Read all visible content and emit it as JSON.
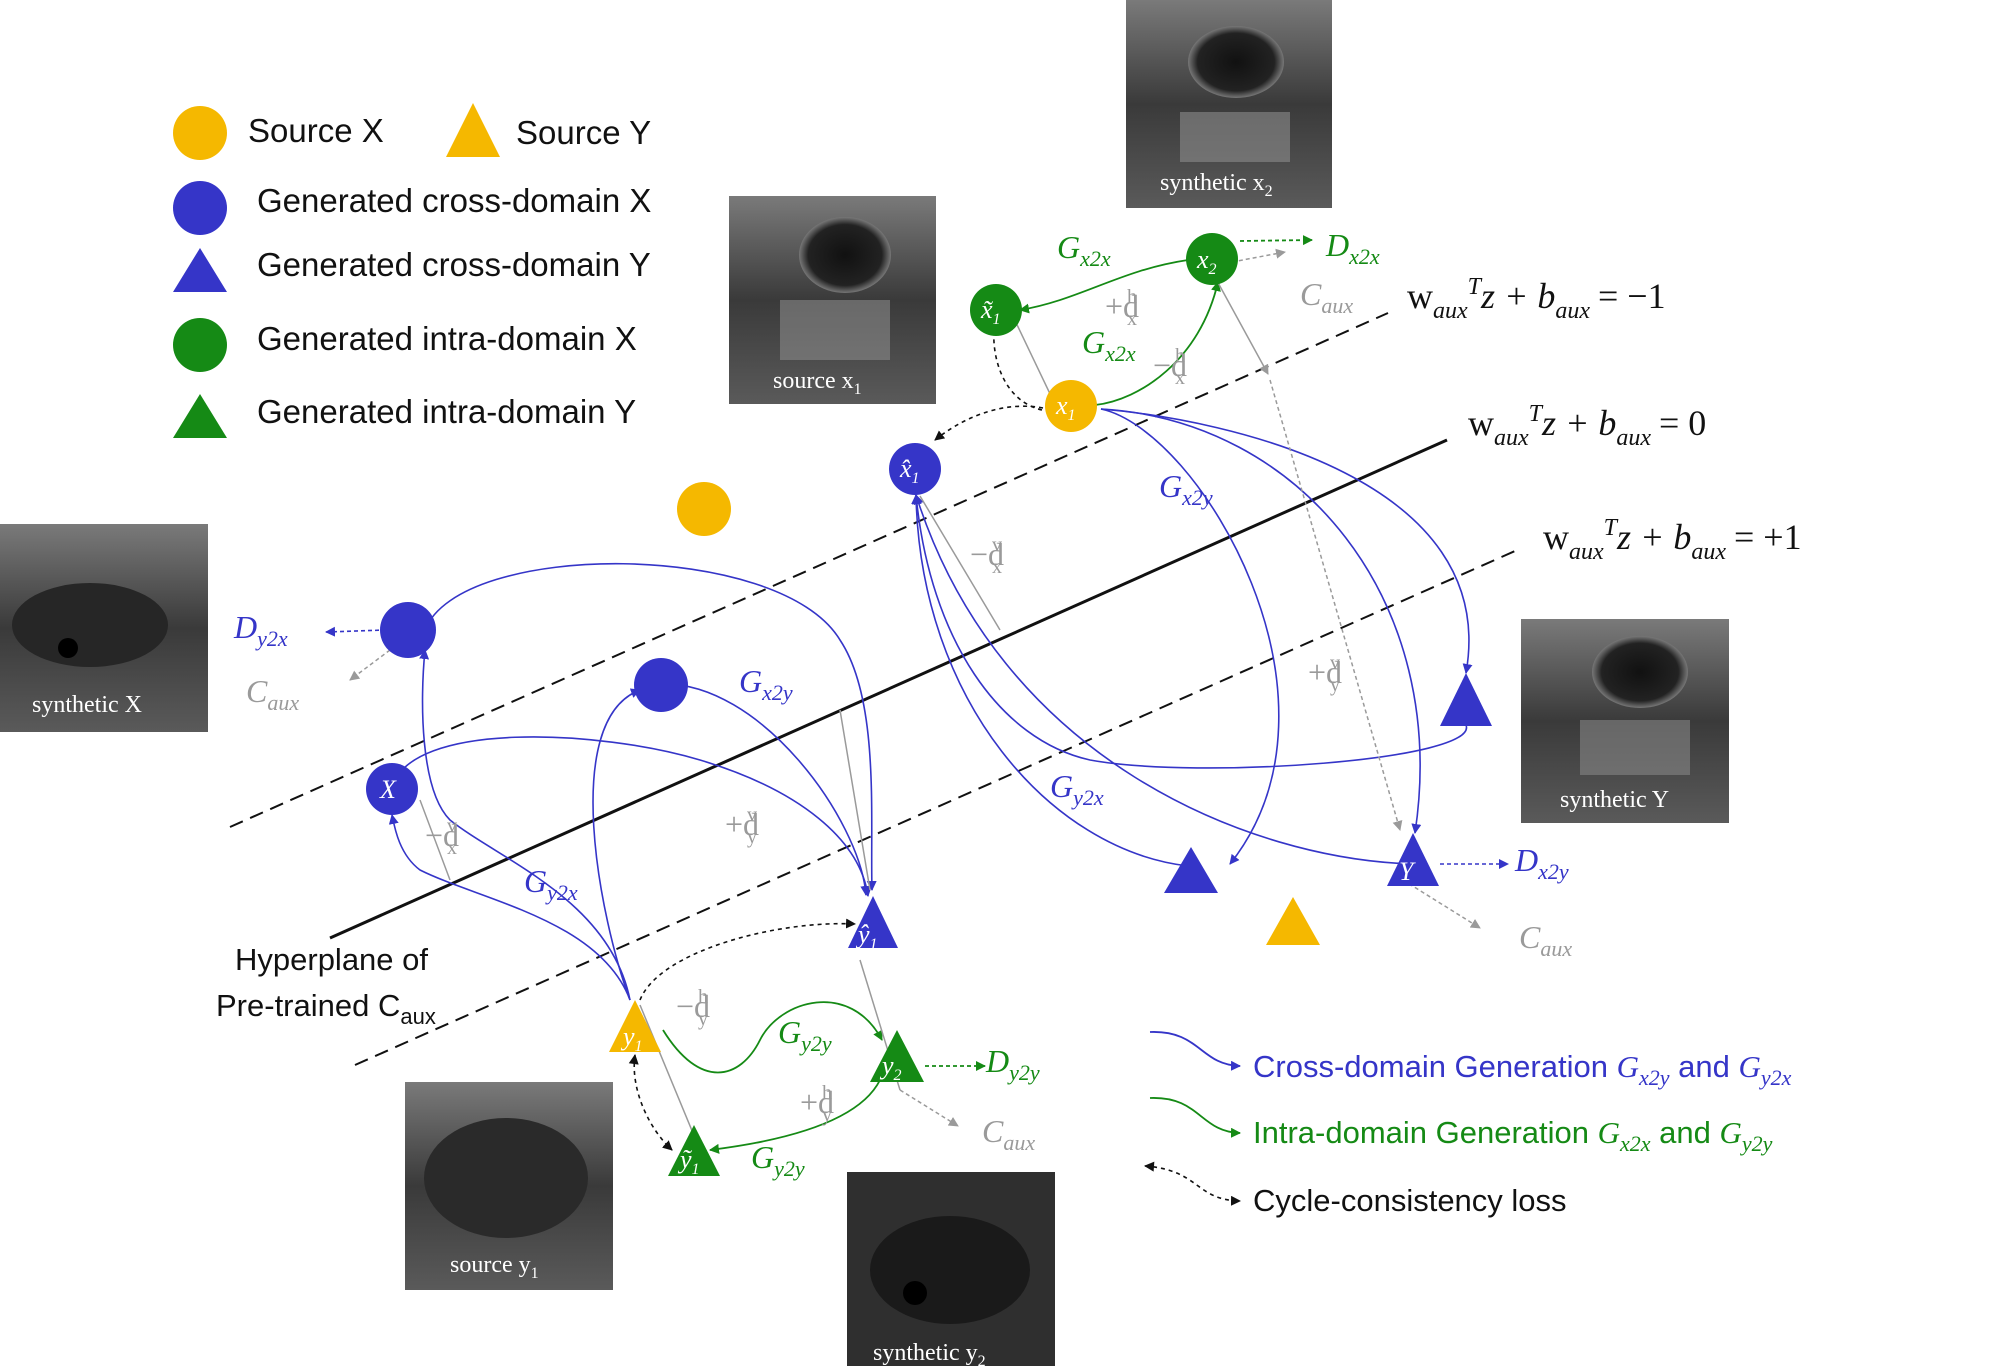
{
  "legend": {
    "source_x": "Source X",
    "source_y": "Source Y",
    "gen_cross_x": "Generated cross-domain X",
    "gen_cross_y": "Generated cross-domain Y",
    "gen_intra_x": "Generated intra-domain X",
    "gen_intra_y": "Generated intra-domain Y"
  },
  "images": {
    "synthetic_x2": "synthetic x",
    "synthetic_x2_sub": "2",
    "source_x1": "source x",
    "source_x1_sub": "1",
    "synthetic_X": "synthetic X",
    "synthetic_Y": "synthetic Y",
    "source_y1": "source y",
    "source_y1_sub": "1",
    "synthetic_y2": "synthetic y",
    "synthetic_y2_sub": "2"
  },
  "equations": {
    "minus1_lhs": "w",
    "minus1_sub1": "aux",
    "minus1_rest": "T",
    "minus1_z": "z + b",
    "minus1_sub2": "aux",
    "minus1_val": "= −1",
    "zero_val": "=  0",
    "plus1_val": "=  +1"
  },
  "hyperplane": {
    "line1": "Hyperplane of",
    "line2": "Pre-trained C",
    "line2_sub": "aux"
  },
  "labels": {
    "G": "G",
    "D": "D",
    "C": "C",
    "x2x": "x2x",
    "x2y": "x2y",
    "y2x": "y2x",
    "y2y": "y2y",
    "aux": "aux",
    "plus_d": "+d",
    "minus_d": "−d",
    "h": "h",
    "v": "v",
    "x": "x",
    "y": "y"
  },
  "nodes": {
    "x1": "x",
    "x2": "x",
    "x1_tilde": "x̃",
    "x1_hat": "x̂",
    "X": "X",
    "Y": "Y",
    "y1": "y",
    "y2": "y",
    "y1_hat": "ŷ",
    "y1_tilde": "ỹ",
    "sub1": "1",
    "sub2": "2"
  },
  "bottom_legend": {
    "cross": "Cross-domain Generation ",
    "cross_and": " and ",
    "intra": "Intra-domain Generation ",
    "intra_and": " and ",
    "cycle": "Cycle-consistency loss"
  },
  "colors": {
    "orange": "#f5b800",
    "blue": "#3535c8",
    "green": "#158a15",
    "gray": "#9a9a9a",
    "black": "#111111"
  }
}
